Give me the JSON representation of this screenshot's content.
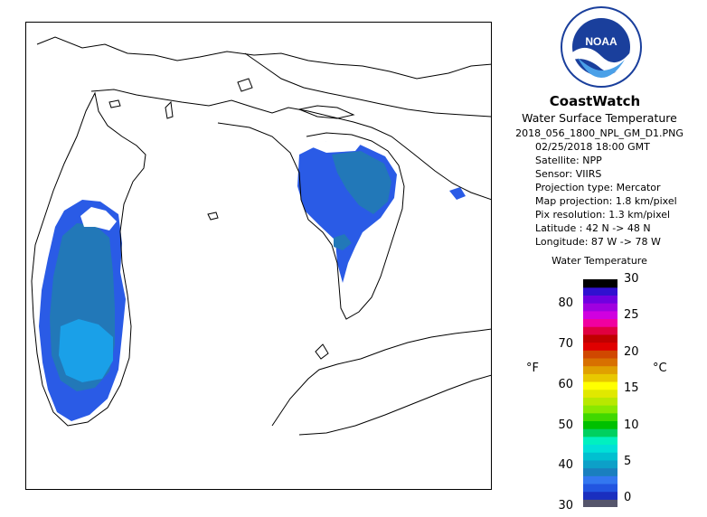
{
  "product": {
    "brand": "CoastWatch",
    "title": "Water Surface Temperature",
    "filename": "2018_056_1800_NPL_GM_D1.PNG",
    "logo_text": "NOAA"
  },
  "metadata": [
    "02/25/2018   18:00 GMT",
    "Satellite: NPP",
    "Sensor: VIIRS",
    "Projection type:  Mercator",
    "Map projection: 1.8 km/pixel",
    "Pix resolution: 1.3 km/pixel",
    "Latitude : 42 N -> 48 N",
    "Longitude: 87 W -> 78 W"
  ],
  "scale": {
    "title": "Water Temperature",
    "unit_f": "°F",
    "unit_c": "°C",
    "fahrenheit_ticks": [
      30,
      40,
      50,
      60,
      70,
      80
    ],
    "celsius_ticks": [
      0,
      5,
      10,
      15,
      20,
      25,
      30
    ],
    "colors_bottom_to_top": [
      "#55556b",
      "#1a2fbf",
      "#2255e0",
      "#3377f0",
      "#1a7fbf",
      "#0da0c8",
      "#00c0d0",
      "#00e0d8",
      "#00f0c0",
      "#00d060",
      "#00c000",
      "#40d800",
      "#88e800",
      "#b8e800",
      "#e0e800",
      "#ffff00",
      "#e8c800",
      "#e0a000",
      "#d87000",
      "#d04800",
      "#e00000",
      "#c00000",
      "#e00040",
      "#f000a0",
      "#d000e0",
      "#a000e0",
      "#7000e0",
      "#3010d0",
      "#000000"
    ]
  },
  "map": {
    "colors": {
      "coast": "#000000",
      "temp_cold": "#2a5be6",
      "temp_mid": "#2278b8",
      "temp_warm": "#1aa0e8",
      "ice_cloud": "#ffffff"
    }
  }
}
